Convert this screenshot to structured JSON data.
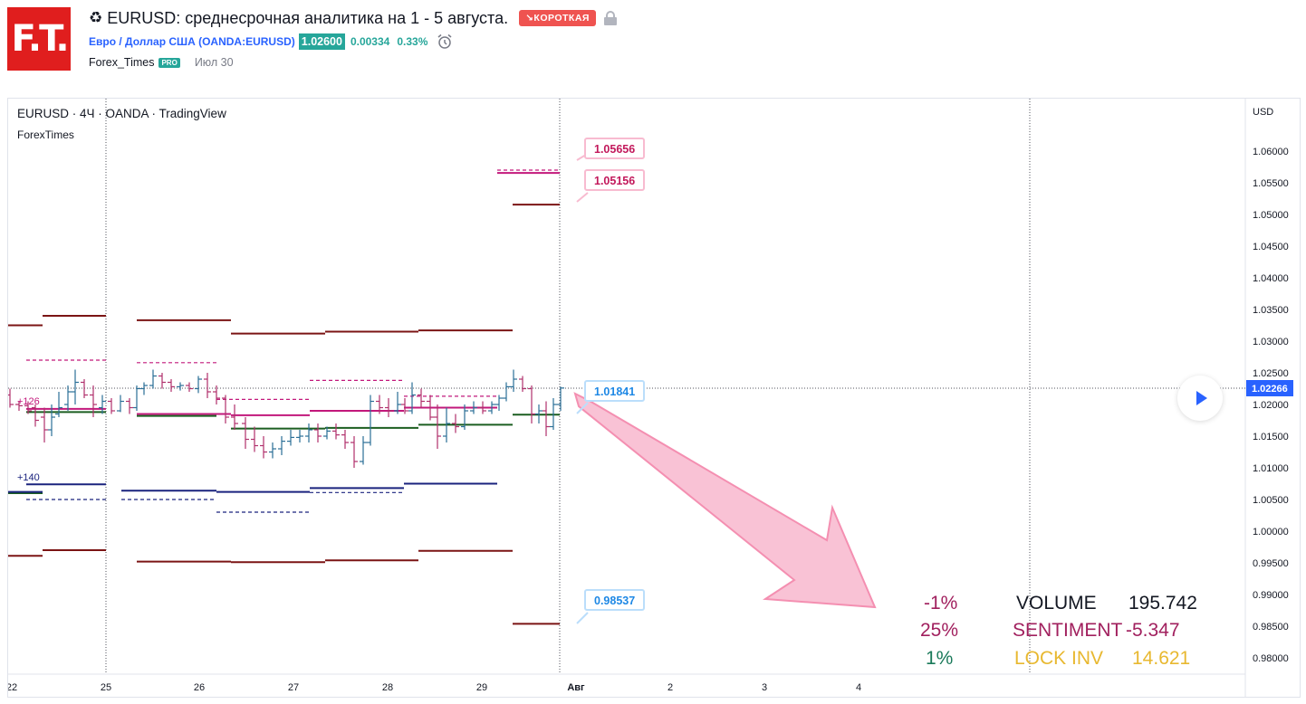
{
  "header": {
    "logo_text": "F.T.",
    "recycle_icon": "♻",
    "title": "EURUSD: среднесрочная аналитика на 1 - 5 августа.",
    "badge": "↘КОРОТКАЯ",
    "symbol_name": "Евро / Доллар США",
    "symbol_code": "(OANDA:EURUSD)",
    "price": "1.02600",
    "change": "0.00334",
    "change_pct": "0.33%",
    "author": "Forex_Times",
    "pro": "PRO",
    "date": "Июл 30"
  },
  "chart": {
    "legend": "EURUSD · 4Ч · OANDA · TradingView",
    "legend_sub": "ForexTimes",
    "currency": "USD",
    "current_price": "1.02266",
    "y_axis": {
      "min": 0.975,
      "max": 1.065,
      "ticks": [
        "1.06000",
        "1.05500",
        "1.05000",
        "1.04500",
        "1.04000",
        "1.03500",
        "1.03000",
        "1.02500",
        "1.02000",
        "1.01500",
        "1.01000",
        "1.00500",
        "1.00000",
        "0.99500",
        "0.99000",
        "0.98500",
        "0.98000"
      ]
    },
    "x_axis": [
      "22",
      "25",
      "26",
      "27",
      "28",
      "29",
      "Авг",
      "2",
      "3",
      "4"
    ],
    "small_labels": [
      "+126",
      "+140"
    ],
    "callouts": [
      "1.05656",
      "1.05156",
      "1.01841",
      "0.98537"
    ],
    "stats": {
      "rows": [
        {
          "pct": "-1%",
          "label": "VOLUME",
          "value": "195.742",
          "pct_color": "#a1205e",
          "label_color": "#131722"
        },
        {
          "pct": "25%",
          "label": "SENTIMENT",
          "value": "-5.347",
          "pct_color": "#a1205e",
          "label_color": "#a1205e"
        },
        {
          "pct": "1%",
          "label": "LOCK INV",
          "value": "14.621",
          "pct_color": "#1a7a5a",
          "label_color": "#e8b830"
        }
      ]
    },
    "colors": {
      "resistance": "#7b1414",
      "support_blue": "#1a237e",
      "pink": "#c2187b",
      "green": "#1b5e20",
      "bar": "#2a6f97"
    }
  }
}
